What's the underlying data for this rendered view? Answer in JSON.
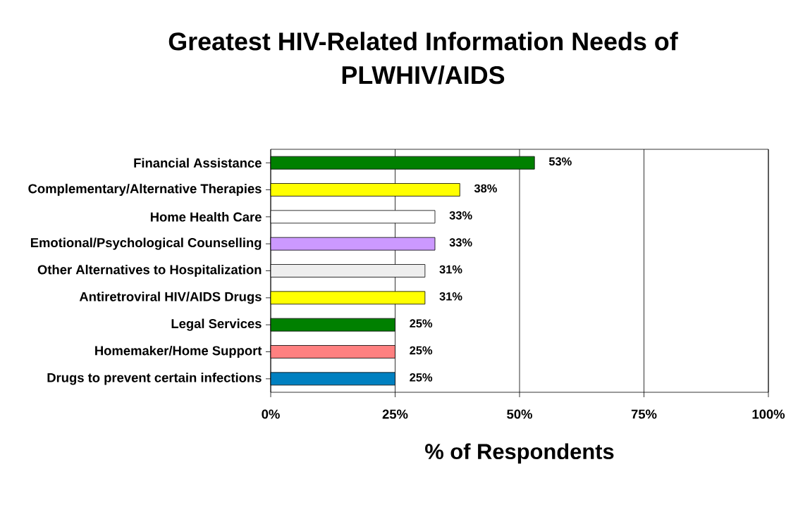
{
  "chart_data": {
    "type": "bar",
    "orientation": "horizontal",
    "title": "Greatest HIV-Related Information Needs of PLWHIV/AIDS",
    "xlabel": "% of Respondents",
    "categories": [
      "Financial Assistance",
      "Complementary/Alternative Therapies",
      "Home Health Care",
      "Emotional/Psychological Counselling",
      "Other Alternatives to Hospitalization",
      "Antiretroviral HIV/AIDS Drugs",
      "Legal Services",
      "Homemaker/Home Support",
      "Drugs to prevent certain infections"
    ],
    "values": [
      53,
      38,
      33,
      33,
      31,
      31,
      25,
      25,
      25
    ],
    "colors": [
      "#008000",
      "#ffff00",
      "#ffffff",
      "#cc99ff",
      "#eeeeee",
      "#ffff00",
      "#008000",
      "#ff8080",
      "#0080c0"
    ],
    "value_labels": [
      "53%",
      "38%",
      "33%",
      "33%",
      "31%",
      "31%",
      "25%",
      "25%",
      "25%"
    ],
    "xlim": [
      0,
      100
    ],
    "xticks": [
      {
        "value": 0,
        "label": "0%"
      },
      {
        "value": 25,
        "label": "25%"
      },
      {
        "value": 50,
        "label": "50%"
      },
      {
        "value": 75,
        "label": "75%"
      },
      {
        "value": 100,
        "label": "100%"
      }
    ],
    "grid": "x"
  }
}
